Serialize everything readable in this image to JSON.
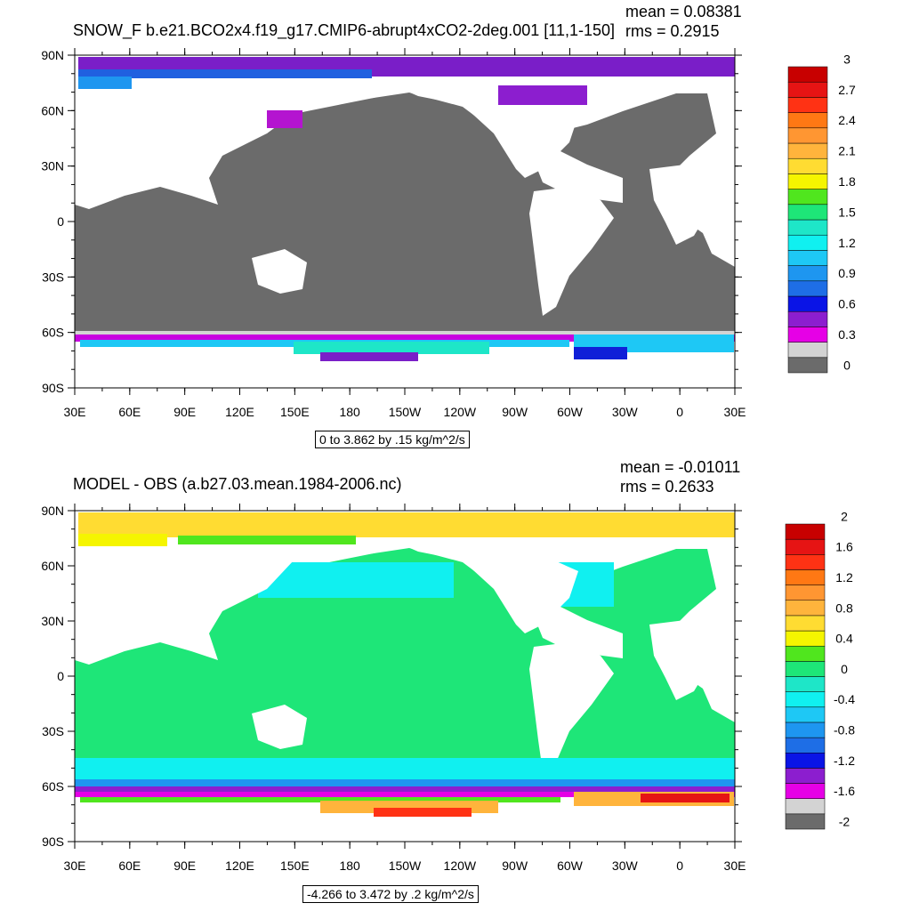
{
  "panels": [
    {
      "title": "SNOW_F b.e21.BCO2x4.f19_g17.CMIP6-abrupt4xCO2-2deg.001 [11,1-150]",
      "mean_label": "mean = 0.08381",
      "rms_label": "rms = 0.2915",
      "range_label": "0 to 3.862 by .15 kg/m^2/s",
      "colorbar": {
        "colors": [
          "#6b6b6b",
          "#d3d3d3",
          "#e600e6",
          "#8c1ecf",
          "#0a14e6",
          "#1e6ee6",
          "#1e96f0",
          "#1ec8f5",
          "#10f0f0",
          "#1ee6c8",
          "#1ee678",
          "#50e61e",
          "#f5f500",
          "#ffdc32",
          "#ffb43c",
          "#ff9632",
          "#ff7814",
          "#ff3214",
          "#e61414",
          "#c80000"
        ],
        "labels": [
          "0",
          "0.3",
          "0.6",
          "0.9",
          "1.2",
          "1.5",
          "1.8",
          "2.1",
          "2.4",
          "2.7",
          "3"
        ]
      }
    },
    {
      "title": "MODEL - OBS (a.b27.03.mean.1984-2006.nc)",
      "mean_label": "mean = -0.01011",
      "rms_label": "rms = 0.2633",
      "range_label": "-4.266 to 3.472 by .2 kg/m^2/s",
      "colorbar": {
        "colors": [
          "#6b6b6b",
          "#d3d3d3",
          "#e600e6",
          "#8c1ecf",
          "#0a14e6",
          "#1e6ee6",
          "#1e96f0",
          "#1ec8f5",
          "#10f0f0",
          "#1ee6c8",
          "#1ee678",
          "#50e61e",
          "#f5f500",
          "#ffdc32",
          "#ffb43c",
          "#ff9632",
          "#ff7814",
          "#ff3214",
          "#e61414",
          "#c80000"
        ],
        "labels": [
          "-2",
          "-1.6",
          "-1.2",
          "-0.8",
          "-0.4",
          "0",
          "0.4",
          "0.8",
          "1.2",
          "1.6",
          "2"
        ]
      }
    }
  ],
  "axes": {
    "lat_labels": [
      "90N",
      "60N",
      "30N",
      "0",
      "30S",
      "60S",
      "90S"
    ],
    "lon_labels": [
      "30E",
      "60E",
      "90E",
      "120E",
      "150E",
      "180",
      "150W",
      "120W",
      "90W",
      "60W",
      "30W",
      "0",
      "30E"
    ]
  }
}
